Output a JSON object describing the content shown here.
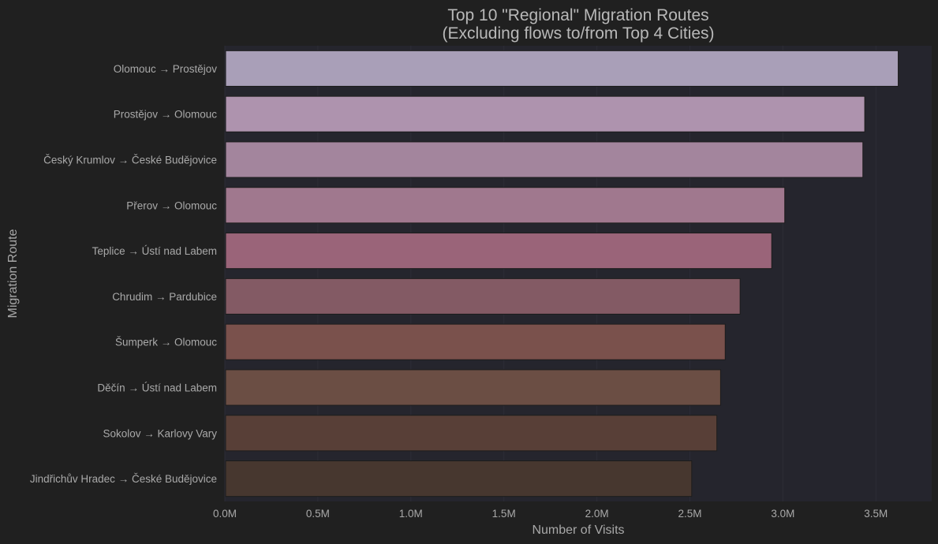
{
  "chart_data": {
    "type": "bar",
    "orientation": "horizontal",
    "title": "Top 10 \"Regional\" Migration Routes",
    "subtitle": "(Excluding flows to/from Top 4 Cities)",
    "xlabel": "Number of Visits",
    "ylabel": "Migration Route",
    "categories": [
      "Olomouc → Prostějov",
      "Prostějov → Olomouc",
      "Český Krumlov → České Budějovice",
      "Přerov → Olomouc",
      "Teplice → Ústí nad Labem",
      "Chrudim → Pardubice",
      "Šumperk → Olomouc",
      "Děčín → Ústí nad Labem",
      "Sokolov → Karlovy Vary",
      "Jindřichův Hradec → České Budějovice"
    ],
    "values": [
      3620000,
      3440000,
      3430000,
      3010000,
      2940000,
      2770000,
      2690000,
      2665000,
      2645000,
      2510000
    ],
    "xlim": [
      0,
      3800000
    ],
    "xticks": [
      0,
      500000,
      1000000,
      1500000,
      2000000,
      2500000,
      3000000,
      3500000
    ],
    "xtick_labels": [
      "0.0M",
      "0.5M",
      "1.0M",
      "1.5M",
      "2.0M",
      "2.5M",
      "3.0M",
      "3.5M"
    ],
    "grid": true,
    "colors": [
      "#a99fb8",
      "#ae93ae",
      "#a3859d",
      "#a0788e",
      "#9a6479",
      "#835a64",
      "#7a514c",
      "#6b4e44",
      "#583f37",
      "#47372f"
    ],
    "background": "#202020",
    "plot_background": "#25252d"
  }
}
